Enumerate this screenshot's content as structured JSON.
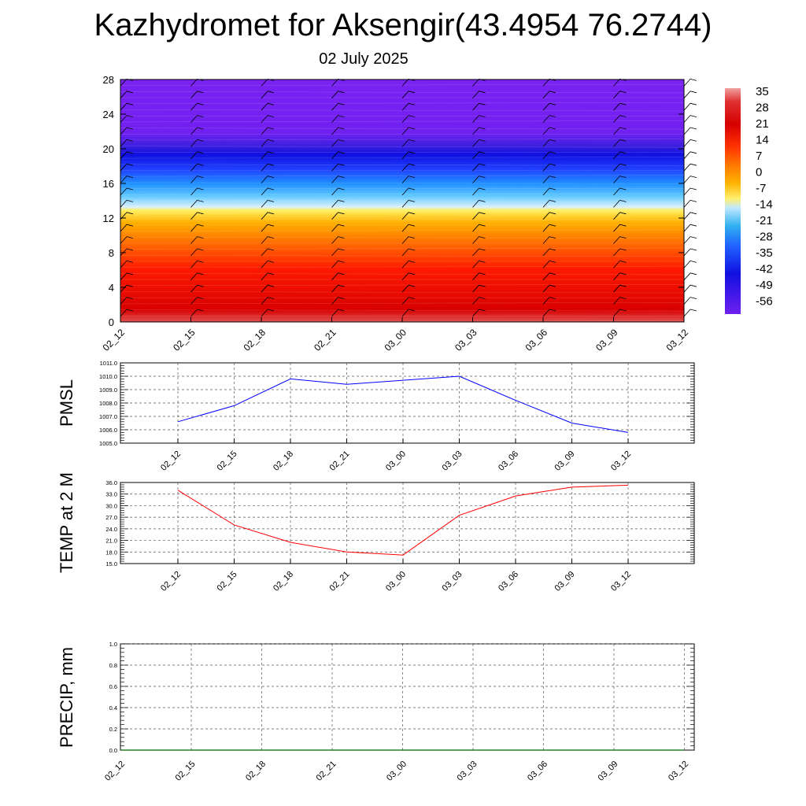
{
  "title": "Kazhydromet for Aksengir(43.4954 76.2744)",
  "subtitle": "02 July 2025",
  "time_labels": [
    "02_12",
    "02_15",
    "02_18",
    "02_21",
    "03_00",
    "03_03",
    "03_06",
    "03_09",
    "03_12"
  ],
  "colorbar": {
    "labels": [
      "35",
      "28",
      "21",
      "14",
      "7",
      "0",
      "-7",
      "-14",
      "-21",
      "-28",
      "-35",
      "-42",
      "-49",
      "-56"
    ],
    "colors": [
      "#f0a0a0",
      "#e03030",
      "#d60000",
      "#ff3300",
      "#ff8000",
      "#ffb300",
      "#fff070",
      "#c0e8ff",
      "#30b0f0",
      "#2060ff",
      "#1010e0",
      "#7020f0"
    ]
  },
  "chart_data": [
    {
      "type": "heatmap",
      "description_field": "temperature cross-section with wind barbs",
      "x": [
        "02_12",
        "02_15",
        "02_18",
        "02_21",
        "03_00",
        "03_03",
        "03_06",
        "03_09",
        "03_12"
      ],
      "ylim": [
        0,
        28
      ],
      "yticks": [
        0,
        4,
        8,
        12,
        16,
        20,
        24,
        28
      ],
      "value_range": [
        -56,
        35
      ],
      "layers": [
        {
          "height": 2,
          "value": 30
        },
        {
          "height": 6,
          "value": 20
        },
        {
          "height": 10,
          "value": 10
        },
        {
          "height": 13,
          "value": -5
        },
        {
          "height": 16,
          "value": -30
        },
        {
          "height": 20,
          "value": -56
        },
        {
          "height": 24,
          "value": -56
        },
        {
          "height": 28,
          "value": -56
        }
      ]
    },
    {
      "type": "line",
      "ylabel": "PMSL",
      "x": [
        "02_12",
        "02_15",
        "02_18",
        "02_21",
        "03_00",
        "03_03",
        "03_06",
        "03_09",
        "03_12"
      ],
      "ylim": [
        1005.0,
        1011.0
      ],
      "yticks": [
        "1005.0",
        "1006.0",
        "1007.0",
        "1008.0",
        "1009.0",
        "1010.0",
        "1011.0"
      ],
      "series": [
        {
          "color": "#0000ff",
          "values": [
            1006.6,
            1007.8,
            1009.8,
            1009.4,
            1009.7,
            1010.0,
            1008.2,
            1006.5,
            1005.8
          ]
        }
      ]
    },
    {
      "type": "line",
      "ylabel": "TEMP at 2 M",
      "x": [
        "02_12",
        "02_15",
        "02_18",
        "02_21",
        "03_00",
        "03_03",
        "03_06",
        "03_09",
        "03_12"
      ],
      "ylim": [
        15.0,
        36.0
      ],
      "yticks": [
        "15.0",
        "18.0",
        "21.0",
        "24.0",
        "27.0",
        "30.0",
        "33.0",
        "36.0"
      ],
      "series": [
        {
          "color": "#ff0000",
          "values": [
            34.0,
            25.0,
            20.5,
            18.0,
            17.2,
            27.5,
            32.5,
            34.8,
            35.3
          ]
        }
      ]
    },
    {
      "type": "line",
      "ylabel": "PRECIP, mm",
      "x": [
        "02_12",
        "02_15",
        "02_18",
        "02_21",
        "03_00",
        "03_03",
        "03_06",
        "03_09",
        "03_12"
      ],
      "ylim": [
        0.0,
        1.0
      ],
      "yticks": [
        "0.0",
        "0.2",
        "0.4",
        "0.6",
        "0.8",
        "1.0"
      ],
      "series": [
        {
          "color": "#006400",
          "values": [
            0,
            0,
            0,
            0,
            0,
            0,
            0,
            0,
            0
          ]
        }
      ]
    }
  ]
}
